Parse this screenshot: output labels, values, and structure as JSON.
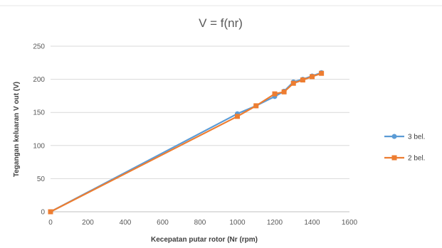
{
  "chart_data": {
    "type": "line",
    "title": "V = f(nr)",
    "xlabel": "Kecepatan putar rotor (Nr (rpm)",
    "ylabel": "Tegangan keluaran V out (V)",
    "xlim": [
      0,
      1600
    ],
    "ylim": [
      0,
      250
    ],
    "x_ticks": [
      "0",
      "200",
      "400",
      "600",
      "800",
      "1000",
      "1200",
      "1400",
      "1600"
    ],
    "y_ticks": [
      "0",
      "50",
      "100",
      "150",
      "200",
      "250"
    ],
    "grid": "horizontal",
    "legend_position": "right",
    "series": [
      {
        "name": "3 bel.",
        "color": "#5b9bd5",
        "marker": "circle",
        "points": [
          [
            0,
            0
          ],
          [
            1000,
            148
          ],
          [
            1100,
            160
          ],
          [
            1200,
            174
          ],
          [
            1250,
            182
          ],
          [
            1300,
            196
          ],
          [
            1350,
            200
          ],
          [
            1400,
            205
          ],
          [
            1450,
            210
          ]
        ]
      },
      {
        "name": "2 bel.",
        "color": "#ed7d31",
        "marker": "square",
        "points": [
          [
            0,
            0
          ],
          [
            1000,
            144
          ],
          [
            1100,
            160
          ],
          [
            1200,
            178
          ],
          [
            1250,
            181
          ],
          [
            1300,
            194
          ],
          [
            1350,
            199
          ],
          [
            1400,
            204
          ],
          [
            1450,
            209
          ]
        ]
      }
    ]
  }
}
